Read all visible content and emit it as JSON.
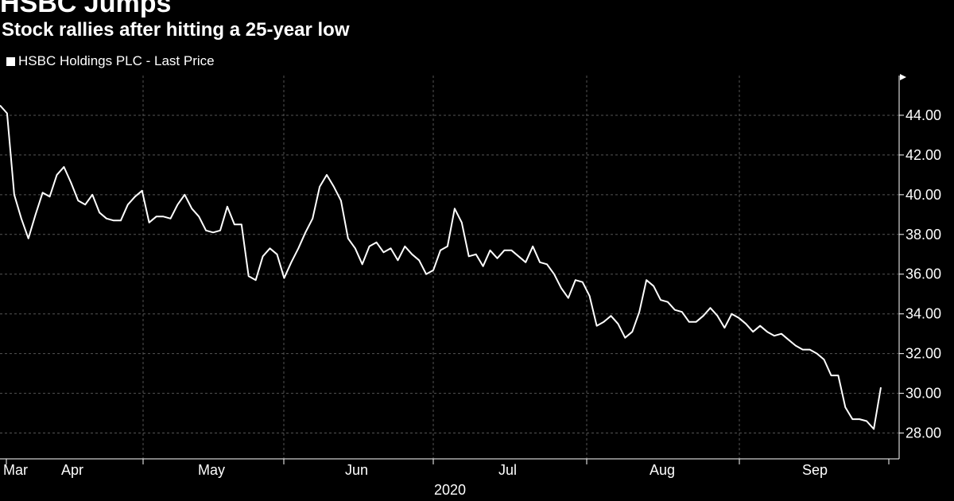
{
  "header": {
    "title": "HSBC Jumps",
    "subtitle": "Stock rallies after hitting a 25-year low"
  },
  "colors": {
    "background": "#000000",
    "line": "#ffffff",
    "grid": "#555555"
  },
  "chart_data": {
    "type": "line",
    "title": "HSBC Jumps",
    "subtitle": "Stock rallies after hitting a 25-year low",
    "legend": [
      "HSBC Holdings PLC - Last Price"
    ],
    "legend_position": "top-left",
    "xlabel": "2020",
    "ylabel": "",
    "x_tick_labels": [
      "Mar",
      "Apr",
      "May",
      "Jun",
      "Jul",
      "Aug",
      "Sep"
    ],
    "y_ticks": [
      28.0,
      30.0,
      32.0,
      34.0,
      36.0,
      38.0,
      40.0,
      42.0,
      44.0
    ],
    "y_tick_labels": [
      "28.00",
      "30.00",
      "32.00",
      "34.00",
      "36.00",
      "38.00",
      "40.00",
      "42.00",
      "44.00"
    ],
    "ylim": [
      26.7,
      46.0
    ],
    "grid": true,
    "y_axis_side": "right",
    "series": [
      {
        "name": "HSBC Holdings PLC - Last Price",
        "values": [
          44.5,
          44.1,
          40.0,
          38.8,
          37.8,
          39.0,
          40.1,
          39.9,
          41.0,
          41.4,
          40.6,
          39.7,
          39.5,
          40.0,
          39.1,
          38.8,
          38.7,
          38.7,
          39.5,
          39.9,
          40.2,
          38.6,
          38.9,
          38.9,
          38.8,
          39.5,
          40.0,
          39.3,
          38.9,
          38.2,
          38.1,
          38.2,
          39.4,
          38.5,
          38.5,
          35.9,
          35.7,
          36.9,
          37.3,
          37.0,
          35.8,
          36.6,
          37.3,
          38.1,
          38.8,
          40.4,
          41.0,
          40.4,
          39.7,
          37.8,
          37.3,
          36.5,
          37.4,
          37.6,
          37.1,
          37.3,
          36.7,
          37.4,
          37.0,
          36.7,
          36.0,
          36.2,
          37.2,
          37.4,
          39.3,
          38.6,
          36.9,
          37.0,
          36.4,
          37.2,
          36.8,
          37.2,
          37.2,
          36.9,
          36.6,
          37.4,
          36.6,
          36.5,
          36.0,
          35.3,
          34.8,
          35.7,
          35.6,
          34.9,
          33.4,
          33.6,
          33.9,
          33.5,
          32.8,
          33.1,
          34.1,
          35.7,
          35.4,
          34.7,
          34.6,
          34.2,
          34.1,
          33.6,
          33.6,
          33.9,
          34.3,
          33.9,
          33.3,
          34.0,
          33.8,
          33.5,
          33.1,
          33.4,
          33.1,
          32.9,
          33.0,
          32.7,
          32.4,
          32.2,
          32.2,
          32.0,
          31.7,
          30.9,
          30.9,
          29.3,
          28.7,
          28.7,
          28.6,
          28.2,
          30.3
        ]
      }
    ]
  }
}
